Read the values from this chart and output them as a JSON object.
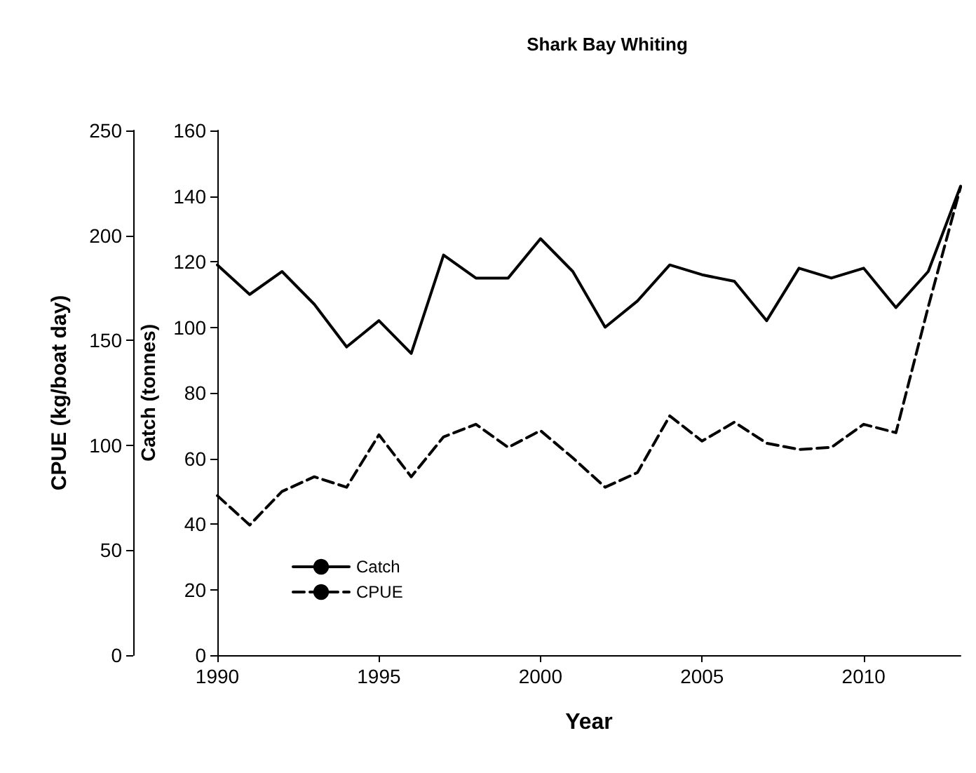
{
  "chart_data": {
    "type": "line",
    "title": "Shark Bay Whiting",
    "xlabel": "Year",
    "ylabel": "Catch (tonnes)",
    "y2label": "CPUE (kg/boat day)",
    "x": [
      1990,
      1991,
      1992,
      1993,
      1994,
      1995,
      1996,
      1997,
      1998,
      1999,
      2000,
      2001,
      2002,
      2003,
      2004,
      2005,
      2006,
      2007,
      2008,
      2009,
      2010,
      2011,
      2012,
      2013
    ],
    "series": [
      {
        "name": "Catch",
        "color": "#000000",
        "line_style": "solid",
        "values": [
          119,
          110,
          117,
          107,
          94,
          102,
          92,
          122,
          115,
          115,
          127,
          117,
          100,
          108,
          119,
          116,
          114,
          102,
          118,
          115,
          118,
          106,
          117,
          143
        ]
      },
      {
        "name": "CPUE",
        "color": "#000000",
        "line_style": "dashed",
        "axis": "y2",
        "values": [
          76,
          62,
          78,
          85,
          80,
          105,
          85,
          104,
          110,
          99,
          107,
          94,
          80,
          87,
          114,
          102,
          111,
          101,
          98,
          99,
          110,
          106,
          166,
          223
        ]
      }
    ],
    "xlim": [
      1990,
      2013
    ],
    "xticks": [
      1990,
      1995,
      2000,
      2005,
      2010
    ],
    "ylim": [
      0,
      160
    ],
    "yticks": [
      0,
      20,
      40,
      60,
      80,
      100,
      120,
      140,
      160
    ],
    "y2lim": [
      0,
      250
    ],
    "y2ticks": [
      0,
      50,
      100,
      150,
      200,
      250
    ],
    "grid": false,
    "legend": "bottom left",
    "marker": "none"
  }
}
